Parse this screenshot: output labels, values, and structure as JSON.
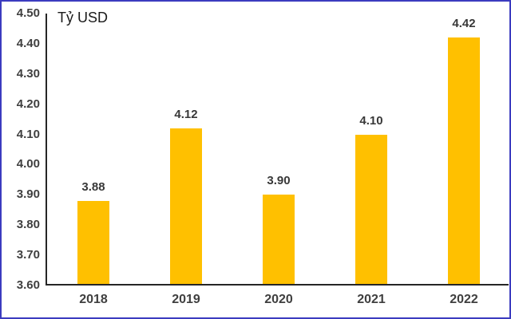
{
  "frame": {
    "border_color": "#3B3BBF",
    "background": "#FFFFFF"
  },
  "chart_data": {
    "type": "bar",
    "title": "Tỷ USD",
    "categories": [
      "2018",
      "2019",
      "2020",
      "2021",
      "2022"
    ],
    "values": [
      3.88,
      4.12,
      3.9,
      4.1,
      4.42
    ],
    "data_labels": [
      "3.88",
      "4.12",
      "3.90",
      "4.10",
      "4.42"
    ],
    "xlabel": "",
    "ylabel": "Tỷ USD",
    "ylim": [
      3.6,
      4.5
    ],
    "ytick_step": 0.1,
    "yticks": [
      "3.60",
      "3.70",
      "3.80",
      "3.90",
      "4.00",
      "4.10",
      "4.20",
      "4.30",
      "4.40",
      "4.50"
    ],
    "grid": false,
    "legend_position": "none",
    "bar_color": "#FFC000",
    "axis_color": "#262626",
    "tick_label_color": "#3F3F3F",
    "data_label_color": "#383838",
    "title_color": "#1A1A1A"
  }
}
